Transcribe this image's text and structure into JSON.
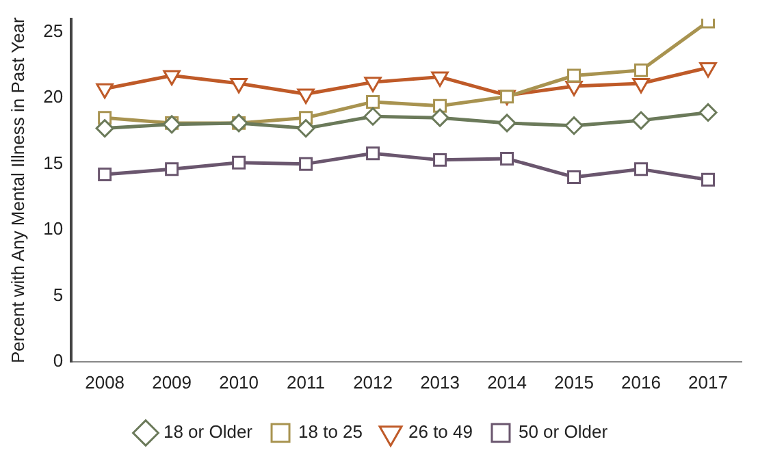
{
  "chart_data": {
    "type": "line",
    "ylabel": "Percent with Any Mental Illness in Past Year",
    "categories": [
      "2008",
      "2009",
      "2010",
      "2011",
      "2012",
      "2013",
      "2014",
      "2015",
      "2016",
      "2017"
    ],
    "ylim": [
      0,
      26
    ],
    "yticks": [
      0,
      5,
      10,
      15,
      20,
      25
    ],
    "grid": false,
    "legend": "bottom",
    "series": [
      {
        "name": "18 or Older",
        "color": "#6b7a5a",
        "marker": "diamond",
        "values": [
          17.7,
          18.0,
          18.1,
          17.7,
          18.6,
          18.5,
          18.1,
          17.9,
          18.3,
          18.9
        ]
      },
      {
        "name": "18 to 25",
        "color": "#a89350",
        "marker": "square",
        "values": [
          18.5,
          18.1,
          18.1,
          18.5,
          19.7,
          19.4,
          20.1,
          21.7,
          22.1,
          25.8
        ]
      },
      {
        "name": "26 to 49",
        "color": "#bf5a28",
        "marker": "triangle",
        "values": [
          20.7,
          21.7,
          21.1,
          20.3,
          21.2,
          21.6,
          20.2,
          20.9,
          21.1,
          22.3
        ]
      },
      {
        "name": "50 or Older",
        "color": "#6a566e",
        "marker": "square",
        "values": [
          14.2,
          14.6,
          15.1,
          15.0,
          15.8,
          15.3,
          15.4,
          14.0,
          14.6,
          13.8
        ]
      }
    ]
  }
}
